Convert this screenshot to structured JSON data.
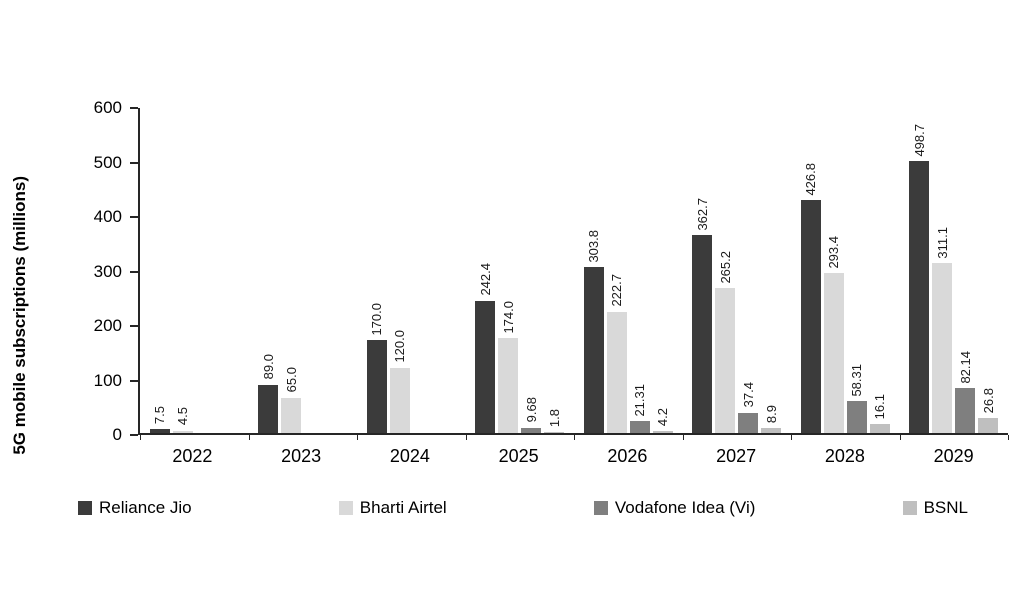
{
  "chart_data": {
    "type": "bar",
    "title": "",
    "xlabel": "",
    "ylabel": "5G mobile subscriptions (millions)",
    "ylim": [
      0,
      600
    ],
    "ytick_step": 100,
    "grid": false,
    "legend_position": "bottom",
    "categories": [
      "2022",
      "2023",
      "2024",
      "2025",
      "2026",
      "2027",
      "2028",
      "2029"
    ],
    "series": [
      {
        "name": "Reliance Jio",
        "color": "#3b3b3b",
        "values": [
          7.5,
          89.0,
          170.0,
          242.4,
          303.8,
          362.7,
          426.8,
          498.7
        ],
        "labels": [
          "7.5",
          "89.0",
          "170.0",
          "242.4",
          "303.8",
          "362.7",
          "426.8",
          "498.7"
        ]
      },
      {
        "name": "Bharti Airtel",
        "color": "#d9d9d9",
        "values": [
          4.5,
          65.0,
          120.0,
          174.0,
          222.7,
          265.2,
          293.4,
          311.1
        ],
        "labels": [
          "4.5",
          "65.0",
          "120.0",
          "174.0",
          "222.7",
          "265.2",
          "293.4",
          "311.1"
        ]
      },
      {
        "name": "Vodafone Idea (Vi)",
        "color": "#7f7f7f",
        "values": [
          null,
          null,
          null,
          9.68,
          21.31,
          37.4,
          58.31,
          82.14
        ],
        "labels": [
          null,
          null,
          null,
          "9.68",
          "21.31",
          "37.4",
          "58.31",
          "82.14"
        ]
      },
      {
        "name": "BSNL",
        "color": "#bfbfbf",
        "values": [
          null,
          null,
          null,
          1.8,
          4.2,
          8.9,
          16.1,
          26.8
        ],
        "labels": [
          null,
          null,
          null,
          "1.8",
          "4.2",
          "8.9",
          "16.1",
          "26.8"
        ]
      }
    ]
  }
}
